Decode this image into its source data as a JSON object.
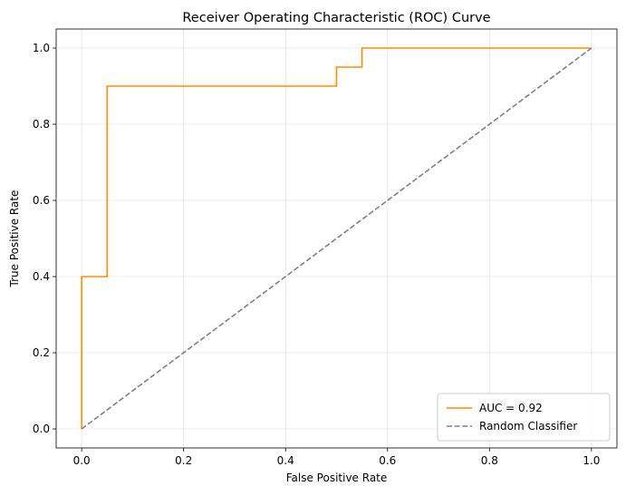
{
  "chart_data": {
    "type": "line",
    "title": "Receiver Operating Characteristic (ROC) Curve",
    "xlabel": "False Positive Rate",
    "ylabel": "True Positive Rate",
    "xlim": [
      -0.05,
      1.05
    ],
    "ylim": [
      -0.05,
      1.05
    ],
    "xticks": [
      "0.0",
      "0.2",
      "0.4",
      "0.6",
      "0.8",
      "1.0"
    ],
    "yticks": [
      "0.0",
      "0.2",
      "0.4",
      "0.6",
      "0.8",
      "1.0"
    ],
    "grid": true,
    "legend_position": "bottom-right",
    "series": [
      {
        "name": "AUC = 0.92",
        "color": "#ff8c00",
        "style": "solid",
        "x": [
          0.0,
          0.0,
          0.05,
          0.05,
          0.5,
          0.5,
          0.55,
          0.55,
          1.0
        ],
        "y": [
          0.0,
          0.4,
          0.4,
          0.9,
          0.9,
          0.95,
          0.95,
          1.0,
          1.0
        ]
      },
      {
        "name": "Random Classifier",
        "color": "#808080",
        "style": "dashed",
        "x": [
          0.0,
          1.0
        ],
        "y": [
          0.0,
          1.0
        ]
      }
    ]
  }
}
